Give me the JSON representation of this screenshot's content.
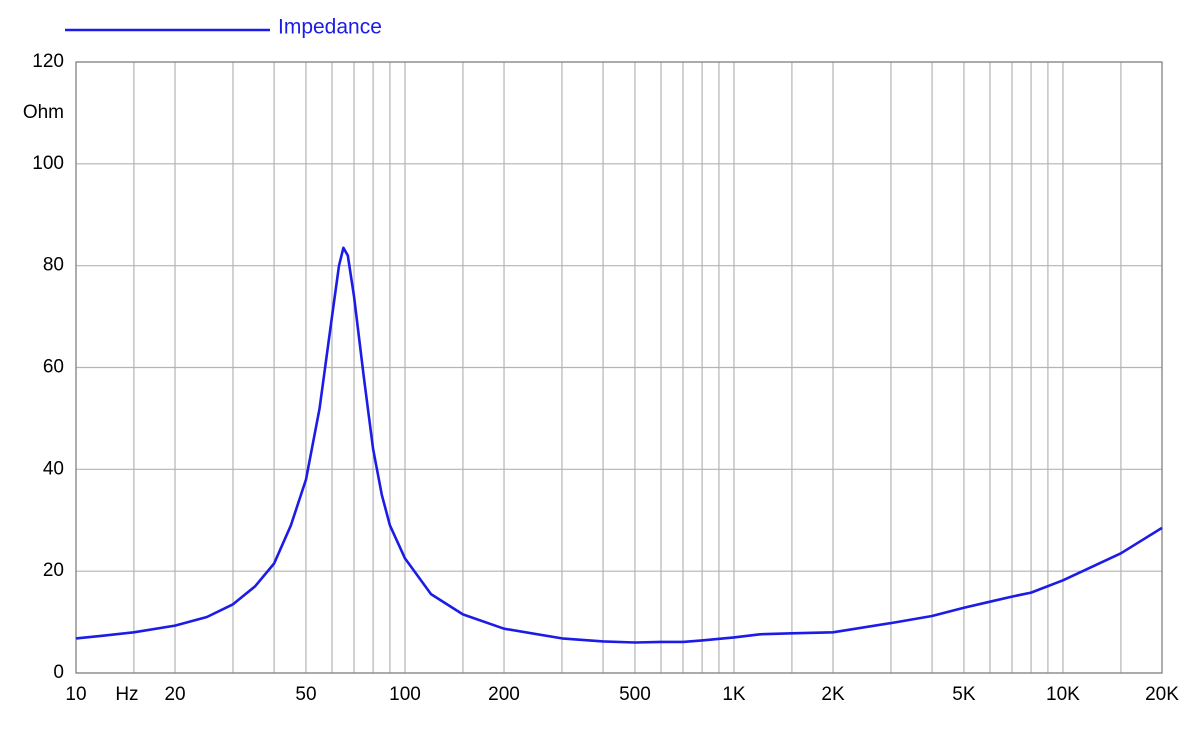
{
  "chart_data": {
    "type": "line",
    "x_log": true,
    "grid": true,
    "x_unit": "Hz",
    "y_unit": "Ohm",
    "x": [
      10,
      12,
      15,
      20,
      25,
      30,
      35,
      40,
      45,
      50,
      55,
      60,
      63,
      65,
      67,
      70,
      75,
      80,
      85,
      90,
      100,
      120,
      150,
      200,
      300,
      400,
      500,
      600,
      700,
      800,
      1000,
      1200,
      1500,
      2000,
      3000,
      4000,
      5000,
      6000,
      7000,
      8000,
      10000,
      15000,
      20000
    ],
    "series": [
      {
        "name": "Impedance",
        "color": "#1c1ce6",
        "values": [
          6.8,
          7.3,
          8.0,
          9.3,
          11,
          13.5,
          17,
          21.5,
          29,
          38,
          52,
          70,
          80,
          83.5,
          82,
          74,
          58,
          44,
          35,
          29,
          22.5,
          15.5,
          11.5,
          8.7,
          6.8,
          6.2,
          6.0,
          6.1,
          6.1,
          6.4,
          7.0,
          7.6,
          7.8,
          8.0,
          9.8,
          11.2,
          12.8,
          14.0,
          15.0,
          15.8,
          18.2,
          23.5,
          28.5
        ]
      }
    ],
    "xlim": [
      10,
      20000
    ],
    "xticks": [
      10,
      20,
      50,
      100,
      200,
      500,
      {
        "value": 1000,
        "label": "1K"
      },
      {
        "value": 2000,
        "label": "2K"
      },
      {
        "value": 5000,
        "label": "5K"
      },
      {
        "value": 10000,
        "label": "10K"
      },
      {
        "value": 20000,
        "label": "20K"
      }
    ],
    "x_minor_grid": [
      15,
      30,
      40,
      60,
      70,
      80,
      90,
      150,
      300,
      400,
      600,
      700,
      800,
      900,
      1500,
      3000,
      4000,
      6000,
      7000,
      8000,
      9000,
      15000
    ],
    "ylim": [
      0,
      120
    ],
    "yticks": [
      0,
      20,
      40,
      60,
      80,
      100,
      120
    ]
  }
}
